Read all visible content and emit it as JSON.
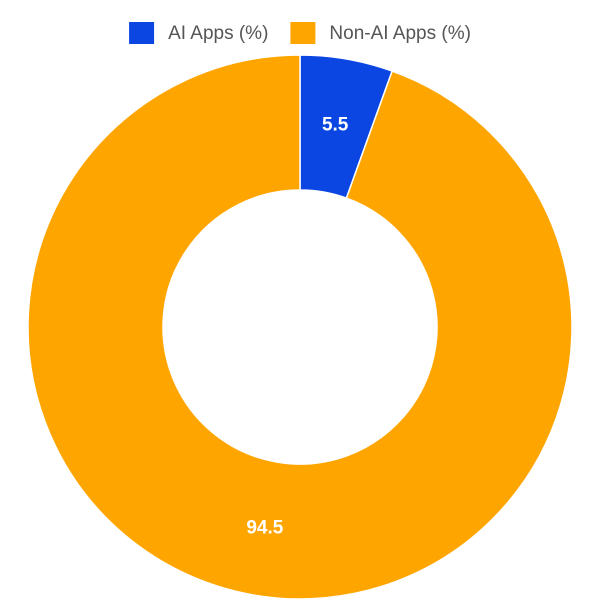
{
  "chart_data": {
    "type": "pie",
    "categories": [
      "AI Apps (%)",
      "Non-AI Apps (%)"
    ],
    "values": [
      5.5,
      94.5
    ],
    "colors": [
      "#0b46e3",
      "#ffa500"
    ]
  }
}
